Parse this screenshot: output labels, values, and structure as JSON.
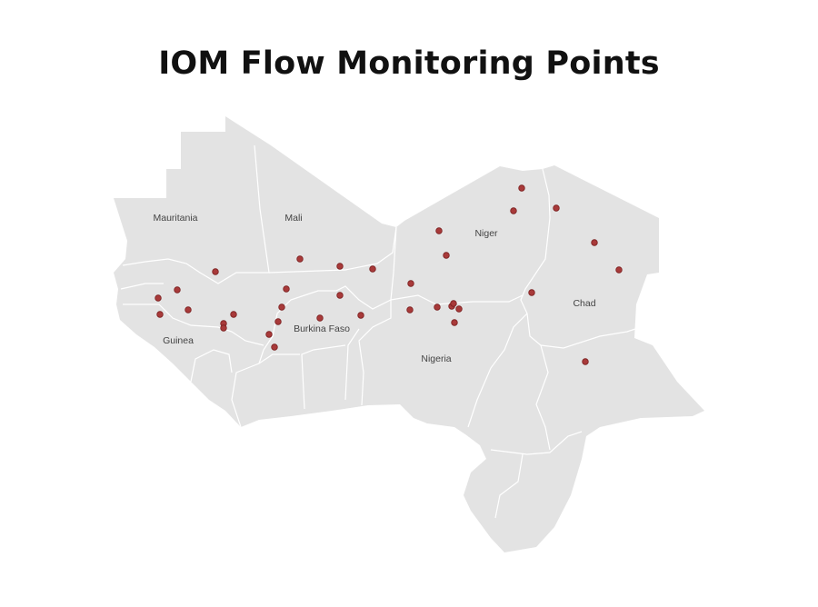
{
  "title": "IOM Flow Monitoring Points",
  "map": {
    "region": "West and Central Africa",
    "land_color": "#e3e3e3",
    "border_color": "#ffffff",
    "point_color": "#a83a3a",
    "country_labels": {
      "mauritania": "Mauritania",
      "mali": "Mali",
      "niger": "Niger",
      "chad": "Chad",
      "guinea": "Guinea",
      "burkina_faso": "Burkina Faso",
      "nigeria": "Nigeria"
    }
  }
}
